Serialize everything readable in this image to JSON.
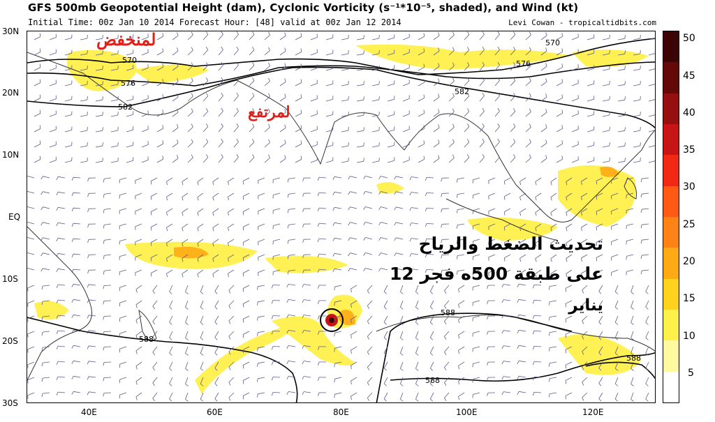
{
  "header": {
    "title": "GFS 500mb Geopotential Height (dam), Cyclonic Vorticity (s⁻¹*10⁻⁵, shaded), and Wind (kt)",
    "subtitle": "Initial Time: 00z Jan 10 2014 Forecast Hour: [48] valid at 00z Jan 12 2014",
    "credit": "Levi Cowan - tropicaltidbits.com"
  },
  "axes": {
    "lat_labels": [
      "30N",
      "20N",
      "10N",
      "EQ",
      "10S",
      "20S",
      "30S"
    ],
    "lon_labels": [
      "40E",
      "60E",
      "80E",
      "100E",
      "120E"
    ]
  },
  "contours": {
    "labels": [
      "570",
      "576",
      "582",
      "570",
      "576",
      "582",
      "588",
      "588",
      "588",
      "588"
    ]
  },
  "colorbar": {
    "ticks": [
      "50",
      "45",
      "40",
      "35",
      "30",
      "25",
      "20",
      "15",
      "10",
      "5"
    ],
    "colors": [
      "#ffffff",
      "#fffaa0",
      "#fff04a",
      "#ffd21e",
      "#ffaa14",
      "#ff8214",
      "#ff5a14",
      "#f02814",
      "#c81414",
      "#961010",
      "#640808",
      "#3c0404"
    ]
  },
  "annotations": {
    "low": "لمنخفض",
    "high": "لمرتفع",
    "line1": "تحديث الضغط والرياح",
    "line2": "على طبقة 500ه فجر 12",
    "line3": "يناير"
  }
}
